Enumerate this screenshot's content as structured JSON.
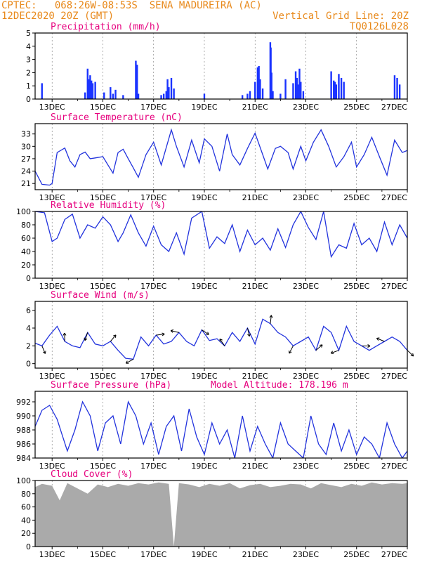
{
  "header": {
    "line1": "CPTEC:   068:26W-08:53S  SENA MADUREIRA (AC)",
    "line2": "12DEC2020 20Z (GMT)",
    "grid_note": "Vertical Grid Line: 20Z",
    "code": "TQ0126L028"
  },
  "x_axis": {
    "ticks": [
      "13DEC",
      "15DEC",
      "17DEC",
      "19DEC",
      "21DEC",
      "23DEC",
      "25DEC",
      "27DEC"
    ],
    "tick_days": [
      1,
      3,
      5,
      7,
      9,
      11,
      13,
      15
    ],
    "range_days": [
      0.33,
      15.0
    ]
  },
  "colors": {
    "line": "#2233dd",
    "bar": "#1a33ff",
    "cloud": "#aaaaaa",
    "arrow": "#000000",
    "title": "#e6007e",
    "header": "#e8891b"
  },
  "chart_data": [
    {
      "type": "bar",
      "title": "Precipitation (mm/h)",
      "ylim": [
        0,
        5
      ],
      "yticks": [
        0,
        1,
        2,
        3,
        4,
        5
      ],
      "x": [
        0.6,
        2.3,
        2.4,
        2.45,
        2.5,
        2.55,
        2.6,
        2.7,
        3.05,
        3.3,
        3.4,
        3.5,
        3.8,
        4.3,
        4.35,
        4.4,
        5.3,
        5.4,
        5.5,
        5.55,
        5.6,
        5.7,
        5.8,
        7.0,
        8.5,
        8.7,
        8.8,
        9.0,
        9.1,
        9.15,
        9.2,
        9.3,
        9.6,
        9.62,
        9.65,
        9.7,
        10.0,
        10.2,
        10.5,
        10.6,
        10.65,
        10.7,
        10.75,
        10.8,
        10.9,
        12.0,
        12.1,
        12.15,
        12.2,
        12.3,
        12.4,
        12.5,
        14.5,
        14.6,
        14.7
      ],
      "values": [
        1.2,
        0.5,
        2.3,
        1.5,
        1.8,
        1.4,
        1.2,
        1.3,
        0.5,
        0.9,
        0.4,
        0.7,
        0.3,
        2.9,
        2.6,
        0.4,
        0.3,
        0.4,
        0.6,
        1.5,
        0.9,
        1.6,
        0.8,
        0.4,
        0.3,
        0.4,
        0.6,
        1.3,
        2.4,
        2.5,
        1.5,
        0.8,
        4.3,
        3.9,
        2.0,
        0.6,
        0.4,
        1.5,
        1.2,
        2.1,
        1.6,
        1.1,
        2.3,
        1.3,
        0.6,
        2.1,
        1.4,
        1.3,
        1.1,
        1.9,
        1.6,
        1.3,
        1.8,
        1.6,
        1.1
      ]
    },
    {
      "type": "line",
      "title": "Surface Temperature (nC)",
      "ylim": [
        19.5,
        35.5
      ],
      "yticks": [
        21,
        24,
        27,
        30,
        33
      ],
      "x": [
        0.33,
        0.6,
        0.9,
        1.0,
        1.2,
        1.5,
        1.7,
        1.9,
        2.1,
        2.3,
        2.5,
        2.7,
        3.0,
        3.2,
        3.4,
        3.6,
        3.8,
        4.0,
        4.2,
        4.4,
        4.7,
        5.0,
        5.3,
        5.7,
        5.9,
        6.2,
        6.5,
        6.8,
        7.0,
        7.3,
        7.6,
        7.9,
        8.1,
        8.4,
        8.7,
        9.0,
        9.3,
        9.5,
        9.8,
        10.0,
        10.3,
        10.5,
        10.8,
        11.0,
        11.3,
        11.6,
        11.9,
        12.2,
        12.5,
        12.8,
        13.0,
        13.3,
        13.6,
        13.9,
        14.2,
        14.5,
        14.8,
        15.0
      ],
      "values": [
        24.0,
        20.8,
        20.6,
        21.0,
        28.5,
        29.6,
        26.5,
        25.0,
        28.0,
        28.6,
        27.0,
        27.2,
        27.5,
        25.5,
        23.5,
        28.5,
        29.3,
        27.0,
        24.8,
        22.5,
        28.0,
        31.0,
        25.5,
        34.0,
        30.0,
        25.0,
        31.5,
        26.0,
        31.8,
        30.0,
        24.0,
        33.0,
        28.0,
        25.5,
        29.5,
        33.2,
        28.0,
        24.5,
        29.5,
        30.0,
        28.5,
        24.5,
        30.0,
        26.5,
        31.0,
        34.0,
        30.0,
        25.0,
        27.5,
        31.0,
        25.0,
        28.0,
        32.2,
        27.5,
        23.0,
        31.5,
        28.5,
        29.0
      ]
    },
    {
      "type": "line",
      "title": "Relative Humidity (%)",
      "ylim": [
        0,
        100
      ],
      "yticks": [
        0,
        20,
        40,
        60,
        80,
        100
      ],
      "x": [
        0.33,
        0.7,
        1.0,
        1.2,
        1.5,
        1.8,
        2.1,
        2.4,
        2.7,
        3.0,
        3.3,
        3.6,
        3.8,
        4.1,
        4.4,
        4.7,
        5.0,
        5.3,
        5.6,
        5.9,
        6.2,
        6.5,
        6.9,
        7.2,
        7.5,
        7.8,
        8.1,
        8.4,
        8.7,
        9.0,
        9.3,
        9.6,
        9.9,
        10.2,
        10.5,
        10.8,
        11.1,
        11.4,
        11.7,
        12.0,
        12.3,
        12.6,
        12.9,
        13.2,
        13.5,
        13.8,
        14.1,
        14.4,
        14.7,
        15.0
      ],
      "values": [
        100,
        98,
        55,
        60,
        88,
        96,
        60,
        80,
        75,
        92,
        80,
        55,
        68,
        95,
        68,
        48,
        78,
        50,
        40,
        68,
        36,
        90,
        100,
        45,
        62,
        52,
        80,
        40,
        72,
        50,
        60,
        42,
        74,
        46,
        80,
        100,
        76,
        58,
        100,
        32,
        50,
        45,
        82,
        50,
        60,
        40,
        84,
        50,
        80,
        60
      ]
    },
    {
      "type": "line",
      "title": "Surface Wind (m/s)",
      "ylim": [
        -0.5,
        7
      ],
      "yticks": [
        0,
        2,
        4,
        6
      ],
      "x": [
        0.33,
        0.6,
        0.9,
        1.2,
        1.5,
        1.8,
        2.1,
        2.4,
        2.7,
        3.0,
        3.3,
        3.6,
        3.9,
        4.2,
        4.5,
        4.8,
        5.1,
        5.4,
        5.7,
        6.0,
        6.3,
        6.6,
        6.9,
        7.2,
        7.5,
        7.8,
        8.1,
        8.4,
        8.7,
        9.0,
        9.3,
        9.6,
        9.9,
        10.2,
        10.5,
        10.8,
        11.1,
        11.4,
        11.7,
        12.0,
        12.3,
        12.6,
        12.9,
        13.2,
        13.5,
        13.8,
        14.1,
        14.4,
        14.7,
        15.0
      ],
      "values": [
        2.3,
        2.0,
        3.2,
        4.2,
        2.5,
        2.0,
        1.8,
        3.5,
        2.2,
        2.0,
        2.5,
        1.5,
        0.6,
        0.5,
        3.0,
        2.0,
        3.2,
        2.2,
        2.5,
        3.5,
        2.5,
        2.0,
        3.8,
        2.6,
        2.8,
        2.0,
        3.5,
        2.5,
        4.0,
        2.2,
        5.0,
        4.5,
        3.5,
        3.0,
        2.0,
        2.5,
        3.0,
        1.5,
        4.2,
        3.5,
        1.5,
        4.2,
        2.5,
        2.0,
        1.5,
        2.0,
        2.5,
        3.0,
        2.5,
        1.5
      ]
    },
    {
      "type": "line",
      "title": "Surface Pressure (hPa)",
      "annotation": "Model Altitude: 178.196 m",
      "ylim": [
        984,
        993.5
      ],
      "yticks": [
        984,
        986,
        988,
        990,
        992
      ],
      "x": [
        0.33,
        0.6,
        0.9,
        1.2,
        1.6,
        1.9,
        2.2,
        2.5,
        2.8,
        3.1,
        3.4,
        3.7,
        4.0,
        4.3,
        4.6,
        4.9,
        5.2,
        5.5,
        5.8,
        6.1,
        6.4,
        6.7,
        7.0,
        7.3,
        7.6,
        7.9,
        8.2,
        8.5,
        8.8,
        9.1,
        9.4,
        9.7,
        10.0,
        10.3,
        10.6,
        10.9,
        11.2,
        11.5,
        11.8,
        12.1,
        12.4,
        12.7,
        13.0,
        13.3,
        13.6,
        13.9,
        14.2,
        14.5,
        14.8,
        15.0
      ],
      "values": [
        988.5,
        990.8,
        991.5,
        989.5,
        985.0,
        988.0,
        992.0,
        990.0,
        985.0,
        989.0,
        990.0,
        986.0,
        992.0,
        990.0,
        986.0,
        989.0,
        984.5,
        988.5,
        990.0,
        985.0,
        991.0,
        987.0,
        984.5,
        989.0,
        986.0,
        988.0,
        984.0,
        990.0,
        985.0,
        988.5,
        986.0,
        984.0,
        989.0,
        986.0,
        985.0,
        984.0,
        990.0,
        986.0,
        984.5,
        989.0,
        985.0,
        988.0,
        984.5,
        987.0,
        986.0,
        984.0,
        989.0,
        986.0,
        984.0,
        985.0
      ]
    },
    {
      "type": "area",
      "title": "Cloud Cover (%)",
      "ylim": [
        0,
        100
      ],
      "yticks": [
        0,
        20,
        40,
        60,
        80,
        100
      ],
      "x": [
        0.33,
        0.6,
        1.0,
        1.3,
        1.6,
        2.0,
        2.4,
        2.8,
        3.2,
        3.6,
        4.0,
        4.4,
        4.8,
        5.2,
        5.6,
        5.8,
        6.0,
        6.4,
        6.8,
        7.2,
        7.6,
        8.0,
        8.4,
        8.8,
        9.2,
        9.6,
        10.0,
        10.4,
        10.8,
        11.2,
        11.6,
        12.0,
        12.4,
        12.8,
        13.2,
        13.6,
        14.0,
        14.4,
        14.8,
        15.0
      ],
      "values": [
        90,
        95,
        92,
        70,
        96,
        88,
        80,
        94,
        90,
        95,
        92,
        96,
        94,
        97,
        95,
        0,
        96,
        94,
        90,
        95,
        92,
        96,
        88,
        93,
        95,
        90,
        92,
        95,
        94,
        88,
        96,
        93,
        90,
        95,
        92,
        97,
        94,
        96,
        95,
        96
      ]
    }
  ]
}
